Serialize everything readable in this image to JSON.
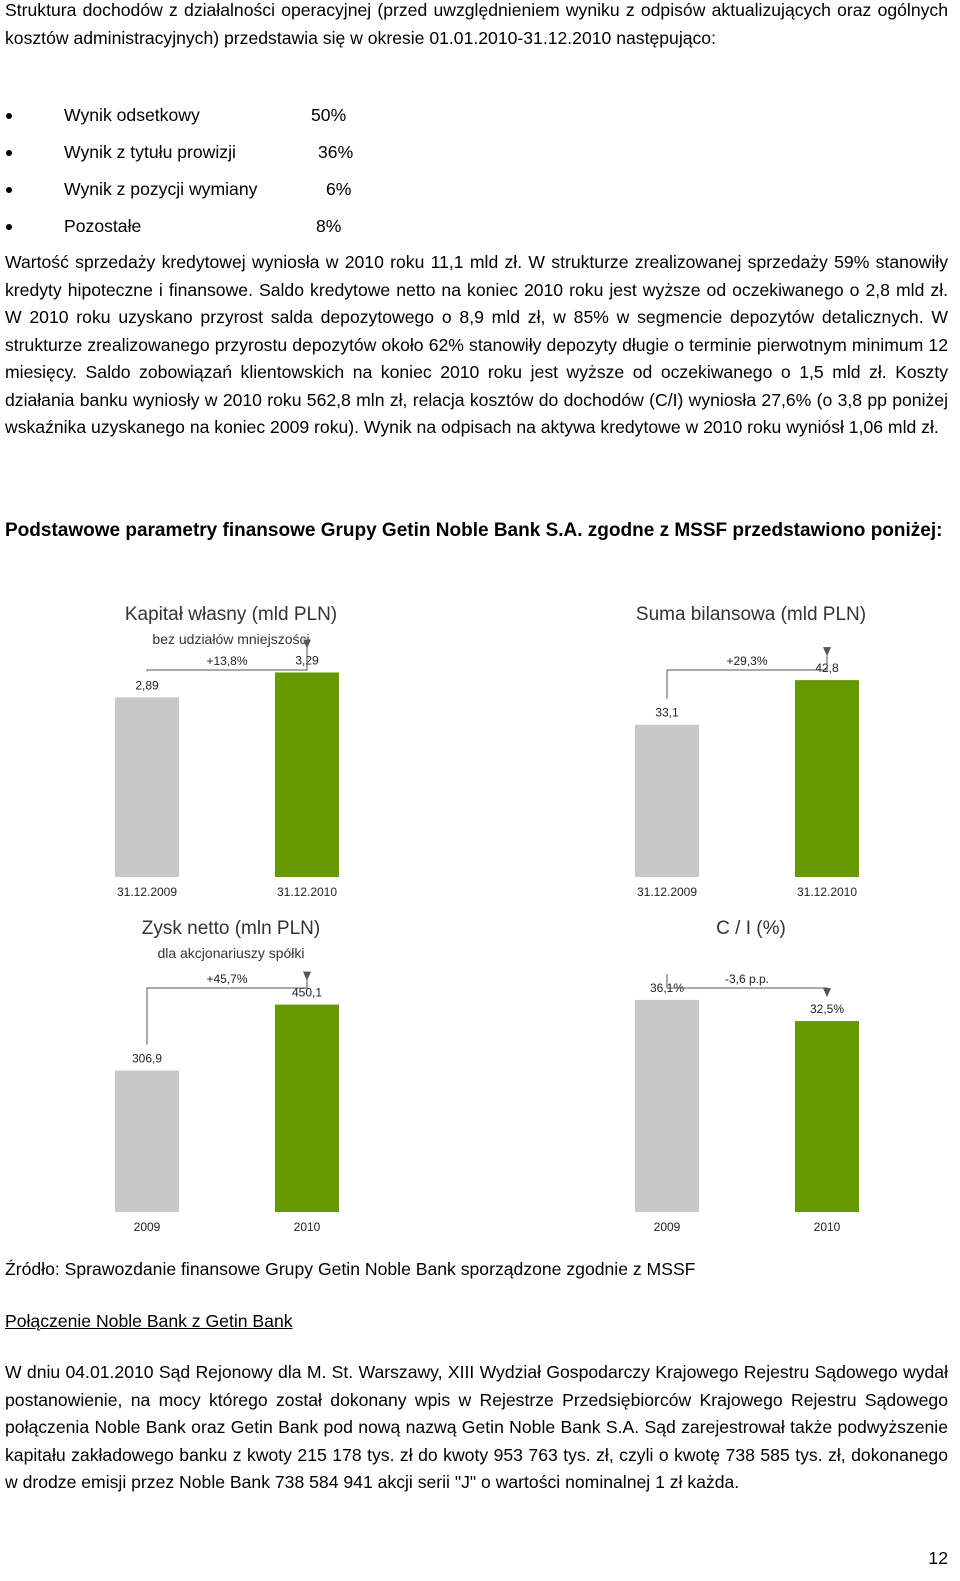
{
  "intro": {
    "text": "Struktura dochodów z działalności operacyjnej (przed uwzględnieniem wyniku z odpisów aktualizujących oraz ogólnych kosztów administracyjnych) przedstawia się w okresie 01.01.2010-31.12.2010 następująco:"
  },
  "bullets": [
    {
      "label": "Wynik odsetkowy",
      "value": "50%"
    },
    {
      "label": "Wynik z tytułu prowizji",
      "value": "36%"
    },
    {
      "label": "Wynik z pozycji wymiany",
      "value": "6%"
    },
    {
      "label": "Pozostałe",
      "value": "8%"
    }
  ],
  "para1": "Wartość sprzedaży kredytowej wyniosła w 2010 roku 11,1 mld zł. W strukturze zrealizowanej sprzedaży 59% stanowiły kredyty hipoteczne i finansowe. Saldo kredytowe netto na koniec 2010 roku jest wyższe od oczekiwanego o 2,8 mld zł. W 2010 roku uzyskano przyrost salda depozytowego o 8,9 mld zł, w 85% w segmencie depozytów detalicznych. W strukturze zrealizowanego przyrostu depozytów około 62% stanowiły depozyty długie o terminie pierwotnym minimum 12 miesięcy. Saldo zobowiązań klientowskich na koniec 2010 roku jest wyższe od oczekiwanego o 1,5 mld zł. Koszty działania banku wyniosły w 2010 roku 562,8 mln zł, relacja kosztów do dochodów (C/I) wyniosła 27,6% (o 3,8 pp poniżej wskaźnika uzyskanego na koniec 2009 roku). Wynik na odpisach na aktywa kredytowe w 2010 roku wyniósł 1,06 mld zł.",
  "heading": "Podstawowe parametry finansowe Grupy Getin Noble Bank S.A. zgodne z MSSF przedstawiono poniżej:",
  "colors": {
    "bar_2009": "#c8c8c8",
    "bar_2010": "#669900",
    "text_dark": "#333333"
  },
  "chart_data": [
    {
      "type": "bar",
      "title": "Kapitał własny (mld PLN)",
      "subtitle": "bez udziałów mniejszości",
      "change": "+13,8%",
      "categories": [
        "31.12.2009",
        "31.12.2010"
      ],
      "values": [
        2.89,
        3.29
      ],
      "value_labels": [
        "2,89",
        "3,29"
      ],
      "ylim": [
        0,
        3.7
      ]
    },
    {
      "type": "bar",
      "title": "Suma bilansowa (mld PLN)",
      "subtitle": "",
      "change": "+29,3%",
      "categories": [
        "31.12.2009",
        "31.12.2010"
      ],
      "values": [
        33.1,
        42.8
      ],
      "value_labels": [
        "33,1",
        "42,8"
      ],
      "ylim": [
        0,
        50
      ]
    },
    {
      "type": "bar",
      "title": "Zysk netto (mln PLN)",
      "subtitle": "dla akcjonariuszy spółki",
      "change": "+45,7%",
      "categories": [
        "2009",
        "2010"
      ],
      "values": [
        306.9,
        450.1
      ],
      "value_labels": [
        "306,9",
        "450,1"
      ],
      "ylim": [
        0,
        510
      ]
    },
    {
      "type": "bar",
      "title": "C / I (%)",
      "subtitle": "",
      "change": "-3,6 p.p.",
      "categories": [
        "2009",
        "2010"
      ],
      "values": [
        36.1,
        32.5
      ],
      "value_labels": [
        "36,1%",
        "32,5%"
      ],
      "ylim": [
        0,
        40
      ]
    }
  ],
  "source": "Źródło: Sprawozdanie finansowe Grupy Getin Noble Bank sporządzone zgodnie z MSSF",
  "section_title": "Połączenie Noble Bank z Getin Bank",
  "para2": "W dniu 04.01.2010 Sąd Rejonowy dla M. St. Warszawy, XIII Wydział Gospodarczy Krajowego Rejestru Sądowego wydał postanowienie, na mocy którego został dokonany wpis w Rejestrze Przedsiębiorców Krajowego Rejestru Sądowego połączenia Noble Bank oraz Getin Bank pod nową nazwą Getin Noble Bank S.A. Sąd zarejestrował także podwyższenie kapitału zakładowego banku z kwoty 215 178 tys. zł do kwoty 953 763 tys. zł, czyli o kwotę 738 585 tys. zł, dokonanego w drodze emisji przez Noble Bank 738 584 941 akcji serii \"J\" o wartości nominalnej 1 zł każda.",
  "page_number": "12"
}
